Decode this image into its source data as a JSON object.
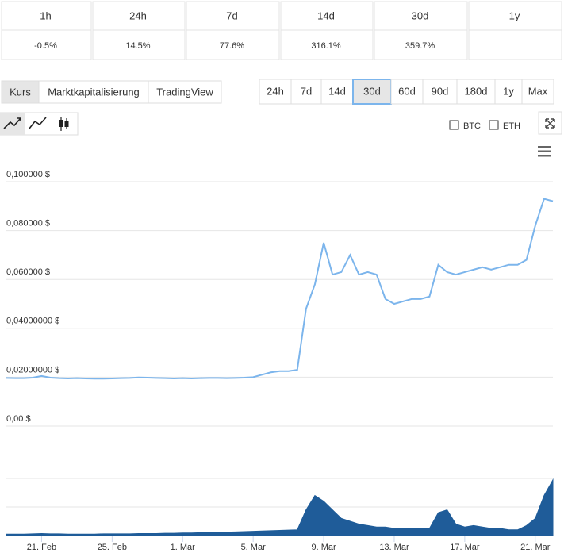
{
  "changes": {
    "periods": [
      "1h",
      "24h",
      "7d",
      "14d",
      "30d",
      "1y"
    ],
    "values": [
      "-0.5%",
      "14.5%",
      "77.6%",
      "316.1%",
      "359.7%"
    ]
  },
  "tabs": [
    "Kurs",
    "Marktkapitalisierung",
    "TradingView"
  ],
  "ranges": [
    "24h",
    "7d",
    "14d",
    "30d",
    "60d",
    "90d",
    "180d",
    "1y",
    "Max"
  ],
  "active_range": "30d",
  "compare": [
    "BTC",
    "ETH"
  ],
  "chart_data": {
    "type": "line",
    "categories": [
      null,
      null,
      null,
      null,
      "21. Feb",
      null,
      null,
      null,
      null,
      null,
      null,
      null,
      "25. Feb",
      null,
      null,
      null,
      null,
      null,
      null,
      null,
      "1. Mar",
      null,
      null,
      null,
      null,
      null,
      null,
      null,
      "5. Mar",
      null,
      null,
      null,
      null,
      null,
      null,
      null,
      "9. Mar",
      null,
      null,
      null,
      null,
      null,
      null,
      null,
      "13. Mar",
      null,
      null,
      null,
      null,
      null,
      null,
      null,
      "17. Mar",
      null,
      null,
      null,
      null,
      null,
      null,
      null,
      "21. Mar",
      null,
      null
    ],
    "ylim": [
      0,
      0.1
    ],
    "yticks": [
      {
        "value": 0,
        "label": "0,00 $"
      },
      {
        "value": 0.02,
        "label": "0,02000000 $"
      },
      {
        "value": 0.04,
        "label": "0,04000000 $"
      },
      {
        "value": 0.06,
        "label": "0,060000 $"
      },
      {
        "value": 0.08,
        "label": "0,080000 $"
      },
      {
        "value": 0.1,
        "label": "0,100000 $"
      }
    ],
    "y2lim": [
      0,
      3
    ],
    "grid": true,
    "series": [
      {
        "color": "#7cb5ec",
        "values": [
          0.0197,
          0.0196,
          0.0196,
          0.0198,
          0.0205,
          0.0198,
          0.0196,
          0.0195,
          0.0196,
          0.0195,
          0.0194,
          0.0194,
          0.0195,
          0.0196,
          0.0197,
          0.0199,
          0.0198,
          0.0197,
          0.0196,
          0.0195,
          0.0196,
          0.0195,
          0.0196,
          0.0197,
          0.0197,
          0.0196,
          0.0197,
          0.0198,
          0.02,
          0.021,
          0.022,
          0.0225,
          0.0225,
          0.023,
          0.048,
          0.058,
          0.075,
          0.062,
          0.063,
          0.07,
          0.062,
          0.063,
          0.062,
          0.052,
          0.05,
          0.051,
          0.052,
          0.052,
          0.053,
          0.066,
          0.063,
          0.062,
          0.063,
          0.064,
          0.065,
          0.064,
          0.065,
          0.066,
          0.066,
          0.068,
          0.082,
          0.093,
          0.092
        ]
      },
      {
        "color": "#1f5c99",
        "axis": "y2",
        "values": [
          0.05,
          0.05,
          0.05,
          0.06,
          0.07,
          0.06,
          0.06,
          0.05,
          0.05,
          0.05,
          0.05,
          0.06,
          0.06,
          0.06,
          0.06,
          0.07,
          0.07,
          0.07,
          0.08,
          0.08,
          0.09,
          0.09,
          0.1,
          0.1,
          0.11,
          0.12,
          0.13,
          0.14,
          0.15,
          0.16,
          0.17,
          0.18,
          0.19,
          0.2,
          0.9,
          1.4,
          1.2,
          0.9,
          0.6,
          0.5,
          0.4,
          0.35,
          0.3,
          0.3,
          0.25,
          0.25,
          0.25,
          0.25,
          0.25,
          0.8,
          0.9,
          0.4,
          0.3,
          0.35,
          0.3,
          0.25,
          0.25,
          0.2,
          0.2,
          0.35,
          0.6,
          1.4,
          1.95
        ]
      }
    ]
  }
}
